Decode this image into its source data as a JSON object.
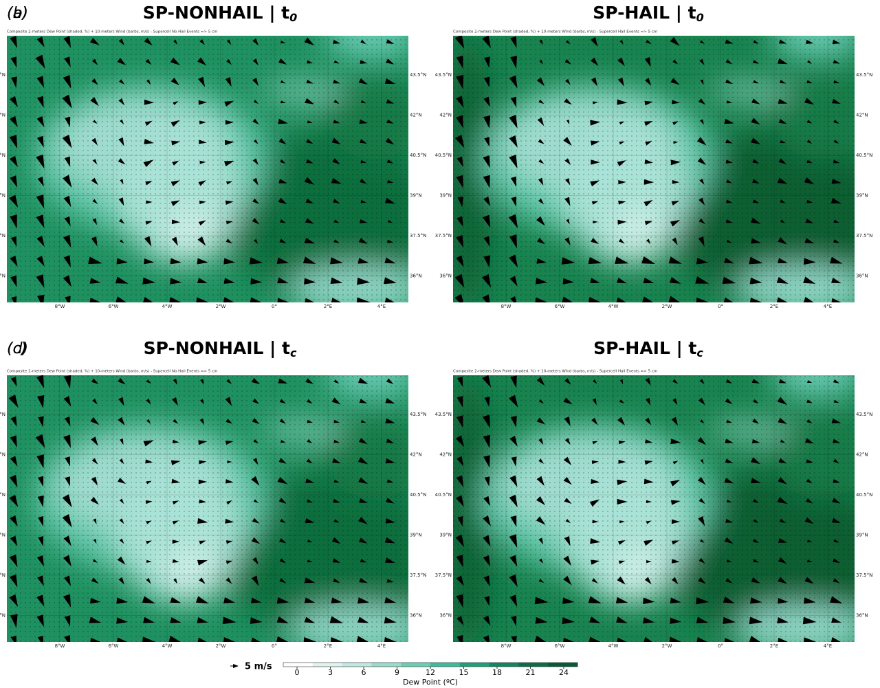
{
  "panels": [
    {
      "label": "(a)",
      "title": "SP-NONHAIL | t",
      "title_subscript": "0",
      "subtitle": "Composite 2-meters Dew Point (shaded, %) + 10-meters Wind (barbs, m/s) - Supercell No Hail Events => 5 cm"
    },
    {
      "label": "(b)",
      "title": "SP-HAIL | t",
      "title_subscript": "0",
      "subtitle": "Composite 2-meters Dew Point (shaded, %) + 10-meters Wind (barbs, m/s) - Supercell Hail Events => 5 cm"
    },
    {
      "label": "(c)",
      "title": "SP-NONHAIL | t",
      "title_subscript": "c",
      "subtitle": "Composite 2-meters Dew Point (shaded, %) + 10-meters Wind (barbs, m/s) - Supercell No Hail Events => 5 cm"
    },
    {
      "label": "(d)",
      "title": "SP-HAIL | t",
      "title_subscript": "c",
      "subtitle": "Composite 2-meters Dew Point (shaded, %) + 10-meters Wind (barbs, m/s) - Supercell Hail Events => 5 cm"
    }
  ],
  "latitude_labels": [
    "43.5°N",
    "42°N",
    "40.5°N",
    "39°N",
    "37.5°N",
    "36°N"
  ],
  "longitude_labels": [
    "8°W",
    "6°W",
    "4°W",
    "2°W",
    "0°",
    "2°E",
    "4°E"
  ],
  "wind_legend": {
    "label": "5 m/s"
  },
  "colorbar": {
    "ticks": [
      0,
      3,
      6,
      9,
      12,
      15,
      18,
      21,
      24
    ],
    "label": "Dew Point (ºC)",
    "colors": [
      "#ffffff",
      "#dff3ef",
      "#bfe9e0",
      "#98dccd",
      "#6ccdb6",
      "#3dbb9c",
      "#1fa07c",
      "#138660",
      "#0c6e48",
      "#075a38"
    ]
  }
}
